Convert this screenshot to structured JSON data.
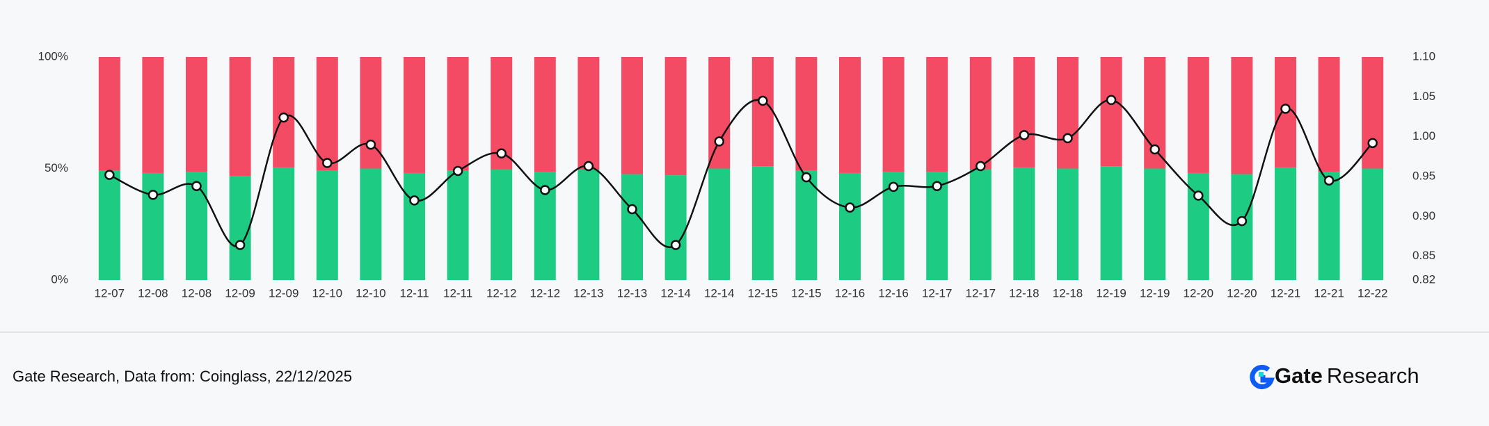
{
  "chart_data": {
    "type": "bar",
    "categories": [
      "12-07",
      "12-08",
      "12-08",
      "12-09",
      "12-09",
      "12-10",
      "12-10",
      "12-11",
      "12-11",
      "12-12",
      "12-12",
      "12-13",
      "12-13",
      "12-14",
      "12-14",
      "12-15",
      "12-15",
      "12-16",
      "12-16",
      "12-17",
      "12-17",
      "12-18",
      "12-18",
      "12-19",
      "12-19",
      "12-20",
      "12-20",
      "12-21",
      "12-21",
      "12-22"
    ],
    "series": [
      {
        "type": "bar",
        "color": "#1ecb82",
        "values": [
          49,
          48,
          48.5,
          46.5,
          50.5,
          49,
          50,
          48,
          49,
          49.5,
          48.5,
          49.5,
          47.5,
          47,
          50,
          51,
          49,
          48,
          48.5,
          48.5,
          49.5,
          50.5,
          50,
          51,
          50,
          48,
          47.5,
          50.5,
          48.5,
          50
        ]
      },
      {
        "type": "bar",
        "color": "#f34b63",
        "values": [
          51,
          52,
          51.5,
          53.5,
          49.5,
          51,
          50,
          52,
          51,
          50.5,
          51.5,
          50.5,
          52.5,
          53,
          50,
          49,
          51,
          52,
          51.5,
          51.5,
          50.5,
          49.5,
          50,
          49,
          50,
          52,
          52.5,
          49.5,
          51.5,
          50
        ]
      },
      {
        "type": "line",
        "axis": "y2",
        "color": "#111111",
        "values": [
          0.952,
          0.927,
          0.938,
          0.864,
          1.024,
          0.967,
          0.99,
          0.92,
          0.957,
          0.979,
          0.933,
          0.963,
          0.909,
          0.864,
          0.994,
          1.045,
          0.949,
          0.911,
          0.937,
          0.938,
          0.963,
          1.002,
          0.998,
          1.046,
          0.984,
          0.926,
          0.894,
          1.035,
          0.945,
          0.992
        ]
      }
    ],
    "stacked": true,
    "ylim": [
      0,
      100
    ],
    "yticks": [
      {
        "value": 0,
        "label": "0%"
      },
      {
        "value": 50,
        "label": "50%"
      },
      {
        "value": 100,
        "label": "100%"
      }
    ],
    "y2lim": [
      0.82,
      1.1
    ],
    "y2ticks": [
      0.82,
      0.85,
      {
        "value": 0.9,
        "label": "0.90"
      },
      0.95,
      {
        "value": 1,
        "label": "1.00"
      },
      1.05,
      {
        "value": 1.1,
        "label": "1.10"
      }
    ]
  },
  "footer": {
    "source": "Gate Research, Data from: Coinglass, 22/12/2025",
    "logo_bold": "Gate",
    "logo_text": "Research"
  }
}
